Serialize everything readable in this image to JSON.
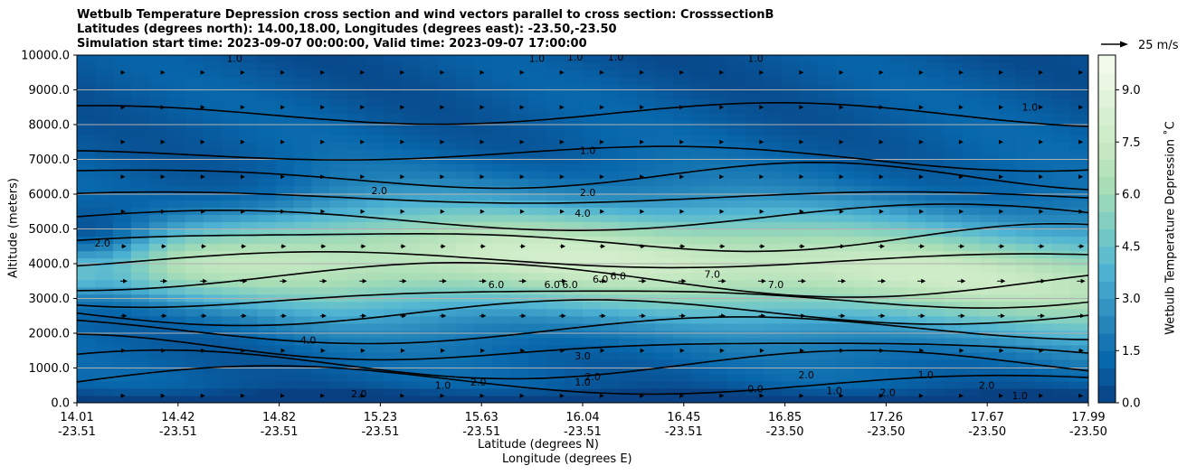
{
  "chart_data": {
    "type": "contour",
    "title_lines": [
      "Wetbulb Temperature Depression cross section and wind vectors parallel to cross section: CrosssectionB",
      "Latitudes (degrees north): 14.00,18.00, Longitudes (degrees east): -23.50,-23.50",
      "Simulation start time: 2023-09-07 00:00:00, Valid time: 2023-09-07 17:00:00"
    ],
    "xlabel_lines": [
      "Latitude (degrees N)",
      "Longitude (degrees E)"
    ],
    "ylabel": "Altitude (meters)",
    "ylim": [
      0,
      10000
    ],
    "yticks": [
      "0.0",
      "1000.0",
      "2000.0",
      "3000.0",
      "4000.0",
      "5000.0",
      "6000.0",
      "7000.0",
      "8000.0",
      "9000.0",
      "10000.0"
    ],
    "xticks": [
      {
        "lat": "14.01",
        "lon": "-23.51"
      },
      {
        "lat": "14.42",
        "lon": "-23.51"
      },
      {
        "lat": "14.82",
        "lon": "-23.51"
      },
      {
        "lat": "15.23",
        "lon": "-23.51"
      },
      {
        "lat": "15.63",
        "lon": "-23.51"
      },
      {
        "lat": "16.04",
        "lon": "-23.51"
      },
      {
        "lat": "16.45",
        "lon": "-23.51"
      },
      {
        "lat": "16.85",
        "lon": "-23.50"
      },
      {
        "lat": "17.26",
        "lon": "-23.50"
      },
      {
        "lat": "17.67",
        "lon": "-23.50"
      },
      {
        "lat": "17.99",
        "lon": "-23.50"
      }
    ],
    "grid": "horizontal",
    "colorbar": {
      "label": "Wetbulb Temperature Depression $^\\circ$C",
      "label_text": "Wetbulb Temperature Depression ˚C",
      "range": [
        0,
        10
      ],
      "ticks": [
        "0.0",
        "1.5",
        "3.0",
        "4.5",
        "6.0",
        "7.5",
        "9.0"
      ],
      "colormap": "GnBu",
      "colors": [
        "#084081",
        "#0868ac",
        "#2b8cbe",
        "#4eb3d3",
        "#7bccc4",
        "#a8ddb5",
        "#ccebc5",
        "#e0f3db",
        "#f7fcf0"
      ]
    },
    "quiver_key": {
      "label": "25 m/s"
    },
    "contour_labels": [
      {
        "text": "1.0",
        "x": 14.63,
        "y": 9800
      },
      {
        "text": "1.0",
        "x": 15.82,
        "y": 9800
      },
      {
        "text": "1.0",
        "x": 15.97,
        "y": 9850
      },
      {
        "text": "1.0",
        "x": 16.13,
        "y": 9850
      },
      {
        "text": "1.0",
        "x": 16.68,
        "y": 9800
      },
      {
        "text": "1.0",
        "x": 16.02,
        "y": 7150
      },
      {
        "text": "1.0",
        "x": 17.76,
        "y": 8400
      },
      {
        "text": "2.0",
        "x": 15.2,
        "y": 6000
      },
      {
        "text": "2.0",
        "x": 16.02,
        "y": 5950
      },
      {
        "text": "4.0",
        "x": 16.0,
        "y": 5350
      },
      {
        "text": "2.0",
        "x": 14.11,
        "y": 4500
      },
      {
        "text": "6.0",
        "x": 15.66,
        "y": 3300
      },
      {
        "text": "6.0",
        "x": 15.88,
        "y": 3300
      },
      {
        "text": "6.0",
        "x": 15.95,
        "y": 3300
      },
      {
        "text": "6.0",
        "x": 16.07,
        "y": 3450
      },
      {
        "text": "6.0",
        "x": 16.14,
        "y": 3550
      },
      {
        "text": "7.0",
        "x": 16.51,
        "y": 3600
      },
      {
        "text": "7.0",
        "x": 16.76,
        "y": 3300
      },
      {
        "text": "4.0",
        "x": 14.92,
        "y": 1700
      },
      {
        "text": "3.0",
        "x": 16.0,
        "y": 1250
      },
      {
        "text": "1.0",
        "x": 16.0,
        "y": 500
      },
      {
        "text": "2.0",
        "x": 16.04,
        "y": 650
      },
      {
        "text": "2.0",
        "x": 15.59,
        "y": 500
      },
      {
        "text": "1.0",
        "x": 15.45,
        "y": 400
      },
      {
        "text": "2.0",
        "x": 15.12,
        "y": 150
      },
      {
        "text": "0.0",
        "x": 16.68,
        "y": 300
      },
      {
        "text": "2.0",
        "x": 16.88,
        "y": 700
      },
      {
        "text": "1.0",
        "x": 16.99,
        "y": 250
      },
      {
        "text": "2.0",
        "x": 17.2,
        "y": 200
      },
      {
        "text": "1.0",
        "x": 17.35,
        "y": 700
      },
      {
        "text": "2.0",
        "x": 17.59,
        "y": 400
      },
      {
        "text": "1.0",
        "x": 17.72,
        "y": 100
      }
    ]
  }
}
